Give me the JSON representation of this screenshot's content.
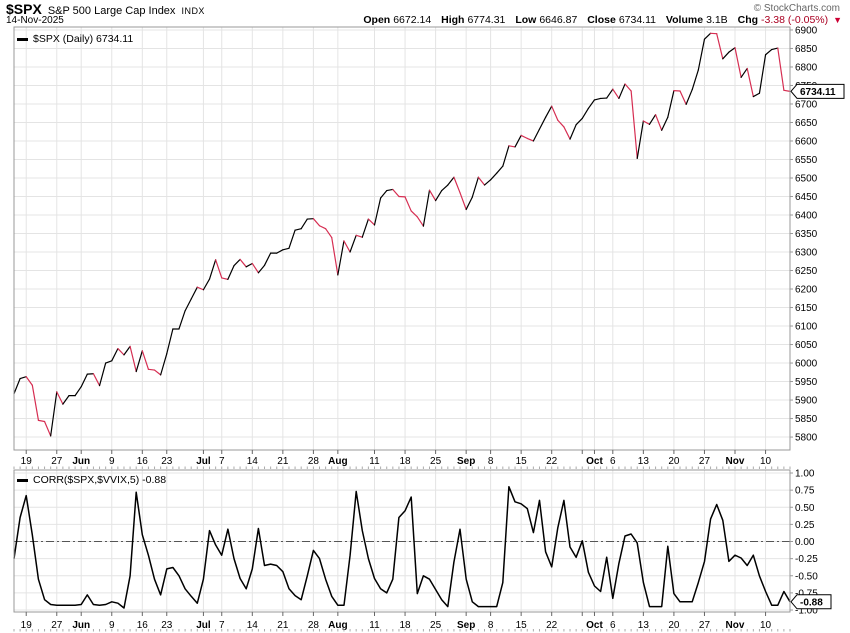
{
  "header": {
    "symbol": "$SPX",
    "name": "S&P 500 Large Cap Index",
    "exchange": "INDX",
    "date": "14-Nov-2025",
    "copyright": "© StockCharts.com",
    "quote": {
      "open_label": "Open",
      "open": "6672.14",
      "high_label": "High",
      "high": "6774.31",
      "low_label": "Low",
      "low": "6646.87",
      "close_label": "Close",
      "close": "6734.11",
      "volume_label": "Volume",
      "volume": "3.1B",
      "chg_label": "Chg",
      "chg": "-3.38 (-0.05%)",
      "direction_icon": "▼",
      "chg_direction": "down"
    }
  },
  "colors": {
    "up_line": "#000000",
    "down_line": "#d62e52",
    "corr_line": "#000000",
    "grid": "#e4e4e4",
    "panel_border": "#999999",
    "zero_line": "#555555",
    "chg_text": "#aa0022",
    "background": "#ffffff"
  },
  "chart_data": [
    {
      "type": "line",
      "title": "$SPX (Daily)",
      "legend": "$SPX (Daily) 6734.11",
      "last_label": "6734.11",
      "last_value": 6734.11,
      "ylabel": "",
      "ylim": [
        5800,
        6900
      ],
      "y_tick_step": 50,
      "y_ticks": [
        6900,
        6850,
        6800,
        6750,
        6700,
        6650,
        6600,
        6550,
        6500,
        6450,
        6400,
        6350,
        6300,
        6250,
        6200,
        6150,
        6100,
        6050,
        6000,
        5950,
        5900,
        5850,
        5800
      ],
      "legend_position": "top-left",
      "grid": true,
      "x": [
        "2025-05-15",
        "2025-05-16",
        "2025-05-19",
        "2025-05-20",
        "2025-05-21",
        "2025-05-22",
        "2025-05-23",
        "2025-05-27",
        "2025-05-28",
        "2025-05-29",
        "2025-05-30",
        "2025-06-02",
        "2025-06-03",
        "2025-06-04",
        "2025-06-05",
        "2025-06-06",
        "2025-06-09",
        "2025-06-10",
        "2025-06-11",
        "2025-06-12",
        "2025-06-13",
        "2025-06-16",
        "2025-06-17",
        "2025-06-18",
        "2025-06-20",
        "2025-06-23",
        "2025-06-24",
        "2025-06-25",
        "2025-06-26",
        "2025-06-27",
        "2025-06-30",
        "2025-07-01",
        "2025-07-02",
        "2025-07-03",
        "2025-07-07",
        "2025-07-08",
        "2025-07-09",
        "2025-07-10",
        "2025-07-11",
        "2025-07-14",
        "2025-07-15",
        "2025-07-16",
        "2025-07-17",
        "2025-07-18",
        "2025-07-21",
        "2025-07-22",
        "2025-07-23",
        "2025-07-24",
        "2025-07-25",
        "2025-07-28",
        "2025-07-29",
        "2025-07-30",
        "2025-07-31",
        "2025-08-01",
        "2025-08-04",
        "2025-08-05",
        "2025-08-06",
        "2025-08-07",
        "2025-08-08",
        "2025-08-11",
        "2025-08-12",
        "2025-08-13",
        "2025-08-14",
        "2025-08-15",
        "2025-08-18",
        "2025-08-19",
        "2025-08-20",
        "2025-08-21",
        "2025-08-22",
        "2025-08-25",
        "2025-08-26",
        "2025-08-27",
        "2025-08-28",
        "2025-08-29",
        "2025-09-02",
        "2025-09-03",
        "2025-09-04",
        "2025-09-05",
        "2025-09-08",
        "2025-09-09",
        "2025-09-10",
        "2025-09-11",
        "2025-09-12",
        "2025-09-15",
        "2025-09-16",
        "2025-09-17",
        "2025-09-18",
        "2025-09-19",
        "2025-09-22",
        "2025-09-23",
        "2025-09-24",
        "2025-09-25",
        "2025-09-26",
        "2025-09-29",
        "2025-09-30",
        "2025-10-01",
        "2025-10-02",
        "2025-10-03",
        "2025-10-06",
        "2025-10-07",
        "2025-10-08",
        "2025-10-09",
        "2025-10-10",
        "2025-10-13",
        "2025-10-14",
        "2025-10-15",
        "2025-10-16",
        "2025-10-17",
        "2025-10-20",
        "2025-10-21",
        "2025-10-22",
        "2025-10-23",
        "2025-10-24",
        "2025-10-27",
        "2025-10-28",
        "2025-10-29",
        "2025-10-30",
        "2025-10-31",
        "2025-11-03",
        "2025-11-04",
        "2025-11-05",
        "2025-11-06",
        "2025-11-07",
        "2025-11-10",
        "2025-11-11",
        "2025-11-12",
        "2025-11-13",
        "2025-11-14"
      ],
      "values": [
        5917,
        5958,
        5963,
        5940,
        5845,
        5842,
        5803,
        5922,
        5889,
        5912,
        5912,
        5936,
        5970,
        5971,
        5939,
        6000,
        6006,
        6039,
        6022,
        6045,
        5977,
        6033,
        5983,
        5981,
        5968,
        6025,
        6092,
        6092,
        6141,
        6173,
        6205,
        6198,
        6227,
        6279,
        6230,
        6226,
        6263,
        6280,
        6260,
        6269,
        6244,
        6264,
        6297,
        6297,
        6306,
        6310,
        6359,
        6363,
        6389,
        6390,
        6371,
        6363,
        6339,
        6238,
        6330,
        6300,
        6345,
        6340,
        6389,
        6373,
        6446,
        6466,
        6469,
        6450,
        6449,
        6411,
        6395,
        6370,
        6467,
        6439,
        6466,
        6481,
        6502,
        6460,
        6415,
        6448,
        6502,
        6481,
        6495,
        6513,
        6532,
        6587,
        6584,
        6615,
        6607,
        6600,
        6632,
        6664,
        6694,
        6656,
        6638,
        6605,
        6644,
        6661,
        6688,
        6711,
        6715,
        6716,
        6740,
        6715,
        6754,
        6735,
        6553,
        6654,
        6645,
        6671,
        6629,
        6664,
        6736,
        6735,
        6699,
        6739,
        6792,
        6875,
        6891,
        6890,
        6822,
        6840,
        6852,
        6772,
        6796,
        6720,
        6729,
        6833,
        6847,
        6851,
        6737,
        6734.11
      ],
      "x_ticks": [
        {
          "label": "19",
          "i": 2
        },
        {
          "label": "27",
          "i": 7
        },
        {
          "label": "Jun",
          "i": 11,
          "bold": true
        },
        {
          "label": "9",
          "i": 16
        },
        {
          "label": "16",
          "i": 21
        },
        {
          "label": "23",
          "i": 25
        },
        {
          "label": "Jul",
          "i": 31,
          "bold": true
        },
        {
          "label": "7",
          "i": 34
        },
        {
          "label": "14",
          "i": 39
        },
        {
          "label": "21",
          "i": 44
        },
        {
          "label": "28",
          "i": 49
        },
        {
          "label": "Aug",
          "i": 53,
          "bold": true
        },
        {
          "label": "11",
          "i": 59
        },
        {
          "label": "18",
          "i": 64
        },
        {
          "label": "25",
          "i": 69
        },
        {
          "label": "Sep",
          "i": 74,
          "bold": true
        },
        {
          "label": "8",
          "i": 78
        },
        {
          "label": "15",
          "i": 83
        },
        {
          "label": "22",
          "i": 88
        },
        {
          "label": "",
          "i": 93
        },
        {
          "label": "Oct",
          "i": 95,
          "bold": true
        },
        {
          "label": "6",
          "i": 98
        },
        {
          "label": "13",
          "i": 103
        },
        {
          "label": "20",
          "i": 108
        },
        {
          "label": "27",
          "i": 113
        },
        {
          "label": "Nov",
          "i": 118,
          "bold": true
        },
        {
          "label": "10",
          "i": 123
        }
      ]
    },
    {
      "type": "line",
      "title": "CORR($SPX,$VVIX,5)",
      "legend": "CORR($SPX,$VVIX,5) -0.88",
      "last_label": "-0.88",
      "last_value": -0.88,
      "ylim": [
        -1.0,
        1.0
      ],
      "y_tick_step": 0.25,
      "y_ticks": [
        "1.00",
        "0.75",
        "0.50",
        "0.25",
        "0.00",
        "-0.25",
        "-0.50",
        "-0.75",
        "-1.00"
      ],
      "zero_line": "dash-dot",
      "grid": true,
      "values": [
        -0.25,
        0.35,
        0.67,
        0.1,
        -0.55,
        -0.85,
        -0.92,
        -0.93,
        -0.93,
        -0.93,
        -0.93,
        -0.92,
        -0.78,
        -0.92,
        -0.93,
        -0.92,
        -0.88,
        -0.9,
        -0.97,
        -0.5,
        0.72,
        0.1,
        -0.2,
        -0.55,
        -0.78,
        -0.4,
        -0.38,
        -0.5,
        -0.69,
        -0.8,
        -0.9,
        -0.55,
        0.16,
        -0.05,
        -0.2,
        0.18,
        -0.25,
        -0.54,
        -0.69,
        -0.4,
        0.19,
        -0.35,
        -0.33,
        -0.35,
        -0.44,
        -0.69,
        -0.79,
        -0.85,
        -0.5,
        -0.13,
        -0.25,
        -0.55,
        -0.8,
        -0.93,
        -0.93,
        -0.2,
        0.73,
        0.16,
        -0.25,
        -0.54,
        -0.69,
        -0.75,
        -0.55,
        0.35,
        0.45,
        0.65,
        -0.76,
        -0.5,
        -0.55,
        -0.7,
        -0.85,
        -0.95,
        -0.3,
        0.18,
        -0.55,
        -0.88,
        -0.95,
        -0.95,
        -0.95,
        -0.95,
        -0.6,
        0.8,
        0.58,
        0.55,
        0.48,
        0.13,
        0.6,
        -0.15,
        -0.37,
        0.2,
        0.6,
        -0.08,
        -0.23,
        0.01,
        -0.45,
        -0.65,
        -0.73,
        -0.23,
        -0.83,
        -0.32,
        0.08,
        0.11,
        -0.02,
        -0.6,
        -0.95,
        -0.95,
        -0.95,
        -0.07,
        -0.76,
        -0.88,
        -0.88,
        -0.88,
        -0.6,
        -0.29,
        0.33,
        0.54,
        0.31,
        -0.29,
        -0.2,
        -0.24,
        -0.35,
        -0.2,
        -0.5,
        -0.73,
        -0.93,
        -0.93,
        -0.73,
        -0.88
      ]
    }
  ]
}
